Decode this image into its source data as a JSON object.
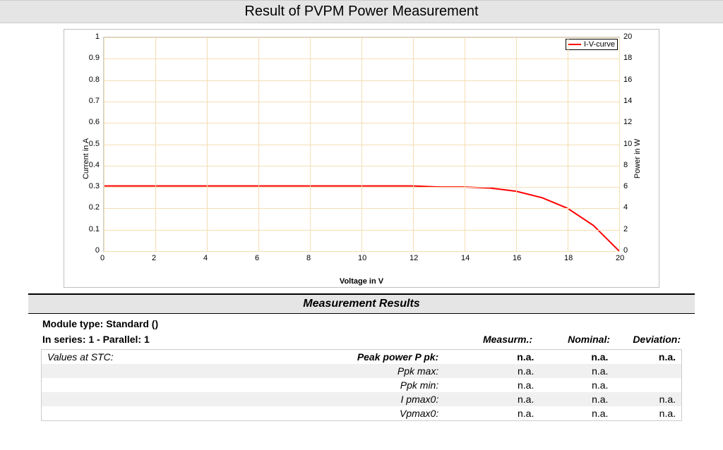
{
  "title": "Result of PVPM Power Measurement",
  "chart": {
    "type": "line",
    "x_label": "Voltage in V",
    "y_label_left": "Current in A",
    "y_label_right": "Power in W",
    "legend_label": "I-V-curve",
    "xlim": [
      0,
      20
    ],
    "ylim_left": [
      0,
      1
    ],
    "ylim_right": [
      0,
      20
    ],
    "x_ticks": [
      0,
      2,
      4,
      6,
      8,
      10,
      12,
      14,
      16,
      18,
      20
    ],
    "y_ticks_left": [
      0,
      0.1,
      0.2,
      0.3,
      0.4,
      0.5,
      0.6,
      0.7,
      0.8,
      0.9,
      1
    ],
    "y_ticks_right": [
      0,
      2,
      4,
      6,
      8,
      10,
      12,
      14,
      16,
      18,
      20
    ],
    "y_tick_labels_left": [
      "0",
      "0.1",
      "0.2",
      "0.3",
      "0.4",
      "0.5",
      "0.6",
      "0.7",
      "0.8",
      "0.9",
      "1"
    ],
    "grid_color": "#f5deb3",
    "line_color": "#ff0000",
    "line_width": 2,
    "background_color": "#ffffff",
    "border_color": "#cccccc",
    "font_size_ticks": 11,
    "font_size_labels": 11,
    "iv_curve": [
      {
        "v": 0,
        "i": 0.305
      },
      {
        "v": 2,
        "i": 0.305
      },
      {
        "v": 4,
        "i": 0.305
      },
      {
        "v": 6,
        "i": 0.305
      },
      {
        "v": 8,
        "i": 0.305
      },
      {
        "v": 10,
        "i": 0.305
      },
      {
        "v": 12,
        "i": 0.305
      },
      {
        "v": 13,
        "i": 0.3
      },
      {
        "v": 14,
        "i": 0.3
      },
      {
        "v": 15,
        "i": 0.295
      },
      {
        "v": 16,
        "i": 0.28
      },
      {
        "v": 17,
        "i": 0.25
      },
      {
        "v": 18,
        "i": 0.2
      },
      {
        "v": 19,
        "i": 0.12
      },
      {
        "v": 19.5,
        "i": 0.06
      },
      {
        "v": 20,
        "i": 0.0
      }
    ]
  },
  "section_header": "Measurement Results",
  "module_type_label": "Module type: Standard ()",
  "series_label": "In series: 1  -  Parallel: 1",
  "col_headers": {
    "measurm": "Measurm.:",
    "nominal": "Nominal:",
    "deviation": "Deviation:"
  },
  "values_at_stc_label": "Values at STC:",
  "rows": [
    {
      "label": "Peak power P pk:",
      "m": "n.a.",
      "n": "n.a.",
      "d": "n.a.",
      "bold": true
    },
    {
      "label": "Ppk max:",
      "m": "n.a.",
      "n": "n.a.",
      "d": "",
      "bold": false
    },
    {
      "label": "Ppk min:",
      "m": "n.a.",
      "n": "n.a.",
      "d": "",
      "bold": false
    },
    {
      "label": "I pmax0:",
      "m": "n.a.",
      "n": "n.a.",
      "d": "n.a.",
      "bold": false
    },
    {
      "label": "Vpmax0:",
      "m": "n.a.",
      "n": "n.a.",
      "d": "n.a.",
      "bold": false
    }
  ]
}
